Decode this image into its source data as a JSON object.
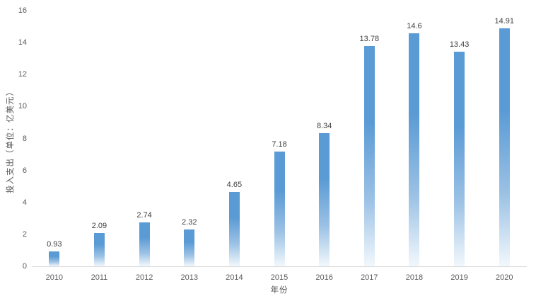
{
  "chart_data": {
    "type": "bar",
    "title": "",
    "categories": [
      "2010",
      "2011",
      "2012",
      "2013",
      "2014",
      "2015",
      "2016",
      "2017",
      "2018",
      "2019",
      "2020"
    ],
    "values": [
      0.93,
      2.09,
      2.74,
      2.32,
      4.65,
      7.18,
      8.34,
      13.78,
      14.6,
      13.43,
      14.91
    ],
    "value_labels": [
      "0.93",
      "2.09",
      "2.74",
      "2.32",
      "4.65",
      "7.18",
      "8.34",
      "13.78",
      "14.6",
      "13.43",
      "14.91"
    ],
    "xlabel": "年份",
    "ylabel": "投入支出（单位：亿美元）",
    "ylim": [
      0,
      16
    ],
    "yticks": [
      0,
      2,
      4,
      6,
      8,
      10,
      12,
      14,
      16
    ],
    "grid": false,
    "legend": "none",
    "colors": {
      "bar_top": "#5b9bd5",
      "bar_mid": "#9cc2e5",
      "bar_bottom": "#f2f8fc",
      "value_label": "#404040",
      "tick_label": "#595959",
      "axis_line": "#d9d9d9"
    }
  }
}
